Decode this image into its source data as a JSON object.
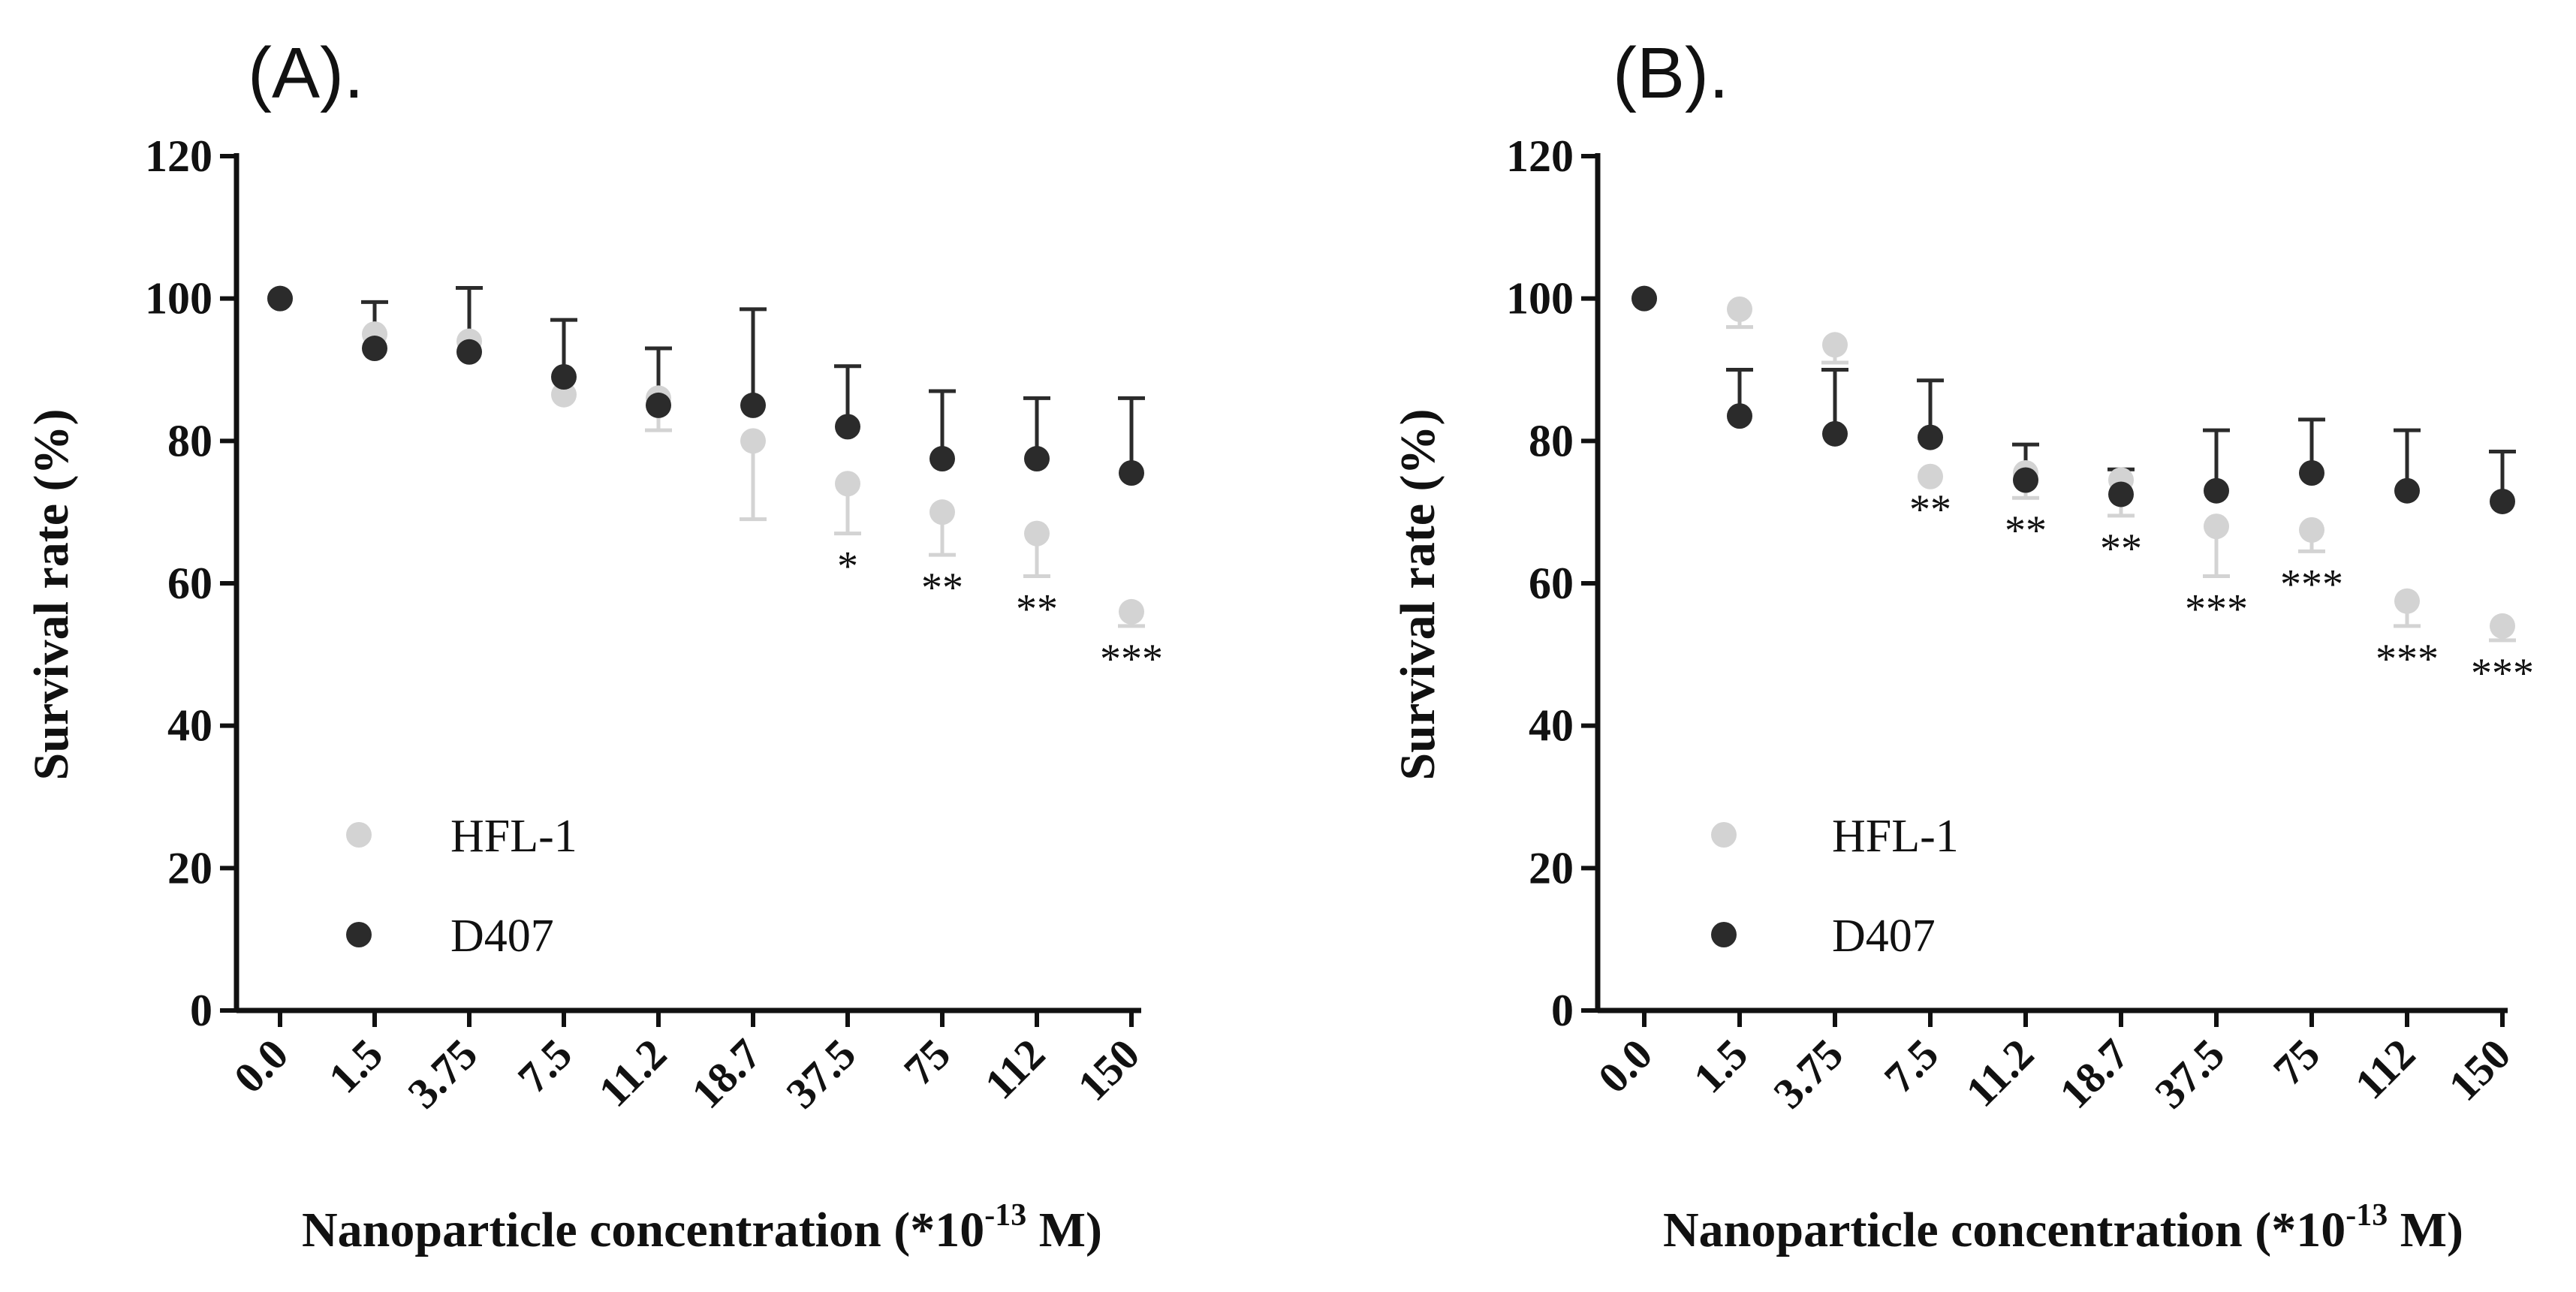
{
  "chart_data": [
    {
      "type": "scatter",
      "panel_label": "(A).",
      "ylabel": "Survival rate (%)",
      "xlabel_main": "Nanoparticle concentration (*10",
      "xlabel_exponent": "-13",
      "xlabel_unit": " M)",
      "categories": [
        "0.0",
        "1.5",
        "3.75",
        "7.5",
        "11.2",
        "18.7",
        "37.5",
        "75",
        "112",
        "150"
      ],
      "yticks": [
        "0",
        "20",
        "40",
        "60",
        "80",
        "100",
        "120"
      ],
      "ylim": [
        0,
        120
      ],
      "legend_position": "bottom-left",
      "series": [
        {
          "name": "HFL-1",
          "color": "#d3d3d3",
          "values": [
            100,
            95,
            94,
            86.5,
            86,
            80,
            74,
            70,
            67,
            56
          ],
          "errors": [
            0,
            0,
            0,
            0,
            4.5,
            11,
            7,
            6,
            6,
            2
          ],
          "error_direction": "down"
        },
        {
          "name": "D407",
          "color": "#2b2b2b",
          "values": [
            100,
            93,
            92.5,
            89,
            85,
            85,
            82,
            77.5,
            77.5,
            75.5
          ],
          "errors": [
            0,
            6.5,
            9,
            8,
            8,
            13.5,
            8.5,
            9.5,
            8.5,
            10.5
          ],
          "error_direction": "up"
        }
      ],
      "significance": [
        "",
        "",
        "",
        "",
        "",
        "",
        "*",
        "**",
        "**",
        "***"
      ]
    },
    {
      "type": "scatter",
      "panel_label": "(B).",
      "ylabel": "Survival rate (%)",
      "xlabel_main": "Nanoparticle concentration (*10",
      "xlabel_exponent": "-13",
      "xlabel_unit": " M)",
      "categories": [
        "0.0",
        "1.5",
        "3.75",
        "7.5",
        "11.2",
        "18.7",
        "37.5",
        "75",
        "112",
        "150"
      ],
      "yticks": [
        "0",
        "20",
        "40",
        "60",
        "80",
        "100",
        "120"
      ],
      "ylim": [
        0,
        120
      ],
      "legend_position": "bottom-left",
      "series": [
        {
          "name": "HFL-1",
          "color": "#d3d3d3",
          "values": [
            100,
            98.5,
            93.5,
            75,
            75.5,
            74.5,
            68,
            67.5,
            57.5,
            54
          ],
          "errors": [
            0,
            2.5,
            2.5,
            0,
            3.5,
            5,
            7,
            3,
            3.5,
            2
          ],
          "error_direction": "down"
        },
        {
          "name": "D407",
          "color": "#2b2b2b",
          "values": [
            100,
            83.5,
            81,
            80.5,
            74.5,
            72.5,
            73,
            75.5,
            73,
            71.5
          ],
          "errors": [
            0,
            6.5,
            9,
            8,
            5,
            3.5,
            8.5,
            7.5,
            8.5,
            7
          ],
          "error_direction": "up"
        }
      ],
      "significance": [
        "",
        "",
        "",
        "**",
        "**",
        "**",
        "***",
        "***",
        "***",
        "***"
      ]
    }
  ]
}
